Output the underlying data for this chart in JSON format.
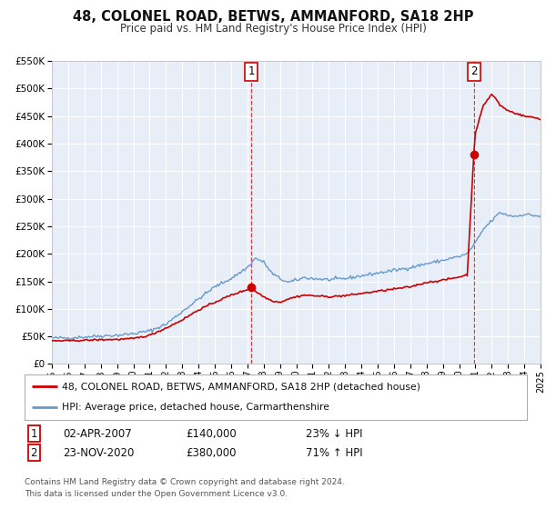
{
  "title": "48, COLONEL ROAD, BETWS, AMMANFORD, SA18 2HP",
  "subtitle": "Price paid vs. HM Land Registry's House Price Index (HPI)",
  "red_label": "48, COLONEL ROAD, BETWS, AMMANFORD, SA18 2HP (detached house)",
  "blue_label": "HPI: Average price, detached house, Carmarthenshire",
  "annotation1_date": "02-APR-2007",
  "annotation1_price": "£140,000",
  "annotation1_hpi": "23% ↓ HPI",
  "annotation2_date": "23-NOV-2020",
  "annotation2_price": "£380,000",
  "annotation2_hpi": "71% ↑ HPI",
  "footnote1": "Contains HM Land Registry data © Crown copyright and database right 2024.",
  "footnote2": "This data is licensed under the Open Government Licence v3.0.",
  "red_color": "#cc0000",
  "blue_color": "#6699cc",
  "background_color": "#e8eef8",
  "grid_color": "#ffffff",
  "point1_x": 2007.25,
  "point1_y": 140000,
  "point2_x": 2020.9,
  "point2_y": 380000,
  "xmin": 1995,
  "xmax": 2025,
  "ymin": 0,
  "ymax": 550000,
  "yticks": [
    0,
    50000,
    100000,
    150000,
    200000,
    250000,
    300000,
    350000,
    400000,
    450000,
    500000,
    550000
  ]
}
